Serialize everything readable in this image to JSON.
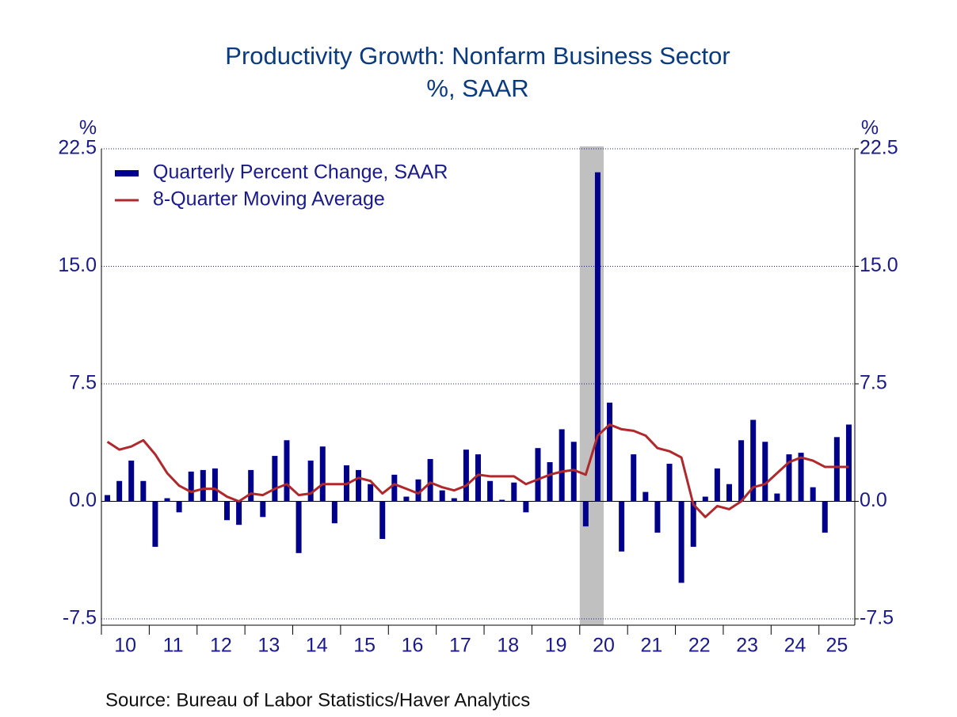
{
  "chart_data": {
    "type": "bar",
    "title": "Productivity Growth: Nonfarm Business Sector",
    "subtitle": "%, SAAR",
    "y_label": "%",
    "y2_label": "%",
    "source": "Source:  Bureau of Labor Statistics/Haver Analytics",
    "categories": [
      "10",
      null,
      null,
      null,
      "11",
      null,
      null,
      null,
      "12",
      null,
      null,
      null,
      "13",
      null,
      null,
      null,
      "14",
      null,
      null,
      null,
      "15",
      null,
      null,
      null,
      "16",
      null,
      null,
      null,
      "17",
      null,
      null,
      null,
      "18",
      null,
      null,
      null,
      "19",
      null,
      null,
      null,
      "20",
      null,
      null,
      null,
      "21",
      null,
      null,
      null,
      "22",
      null,
      null,
      null,
      "23",
      null,
      null,
      null,
      "24",
      null,
      null,
      null,
      "25",
      null,
      null
    ],
    "series": [
      {
        "name": "Quarterly Percent Change, SAAR",
        "type": "bar",
        "color": "#00008b",
        "values": [
          0.4,
          1.3,
          2.6,
          1.3,
          -2.9,
          0.2,
          -0.7,
          1.9,
          2.0,
          2.1,
          -1.2,
          -1.5,
          2.0,
          -1.0,
          2.9,
          3.9,
          -3.3,
          2.6,
          3.5,
          -1.4,
          2.3,
          2.0,
          1.1,
          -2.4,
          1.7,
          0.3,
          1.4,
          2.7,
          0.7,
          0.2,
          3.3,
          3.0,
          1.3,
          0.1,
          1.2,
          -0.7,
          3.4,
          2.5,
          4.6,
          3.8,
          -1.6,
          21.0,
          6.3,
          -3.2,
          3.0,
          0.6,
          -2.0,
          2.4,
          -5.2,
          -2.9,
          0.3,
          2.1,
          1.1,
          3.9,
          5.2,
          3.8,
          0.5,
          3.0,
          3.1,
          0.9,
          -2.0,
          4.1,
          4.9
        ]
      },
      {
        "name": "8-Quarter Moving Average",
        "type": "line",
        "color": "#b0282c",
        "values": [
          3.8,
          3.3,
          3.5,
          3.9,
          3.0,
          1.8,
          1.0,
          0.6,
          0.8,
          0.8,
          0.3,
          0.0,
          0.5,
          0.4,
          0.8,
          1.1,
          0.4,
          0.5,
          1.1,
          1.1,
          1.1,
          1.5,
          1.3,
          0.5,
          1.1,
          0.8,
          0.5,
          1.2,
          0.9,
          0.7,
          1.0,
          1.7,
          1.6,
          1.6,
          1.6,
          1.1,
          1.4,
          1.7,
          1.9,
          2.0,
          1.7,
          4.2,
          4.9,
          4.6,
          4.5,
          4.2,
          3.4,
          3.2,
          2.8,
          -0.2,
          -1.0,
          -0.3,
          -0.5,
          0.0,
          0.9,
          1.1,
          1.8,
          2.5,
          2.8,
          2.6,
          2.2,
          2.2,
          2.2
        ]
      }
    ],
    "shaded_index_range": [
      40,
      41
    ],
    "shade_color": "#c0c0c0",
    "ylim": [
      -7.5,
      22.5
    ],
    "yticks": [
      -7.5,
      {
        "value": 0,
        "label": "0.0"
      },
      7.5,
      {
        "value": 15,
        "label": "15.0"
      },
      22.5
    ],
    "y2lim": [
      -7.5,
      22.5
    ],
    "y2ticks": [
      -7.5,
      {
        "value": 0,
        "label": "0.0"
      },
      7.5,
      {
        "value": 15,
        "label": "15.0"
      },
      22.5
    ],
    "grid": true,
    "legend": "upper left"
  }
}
